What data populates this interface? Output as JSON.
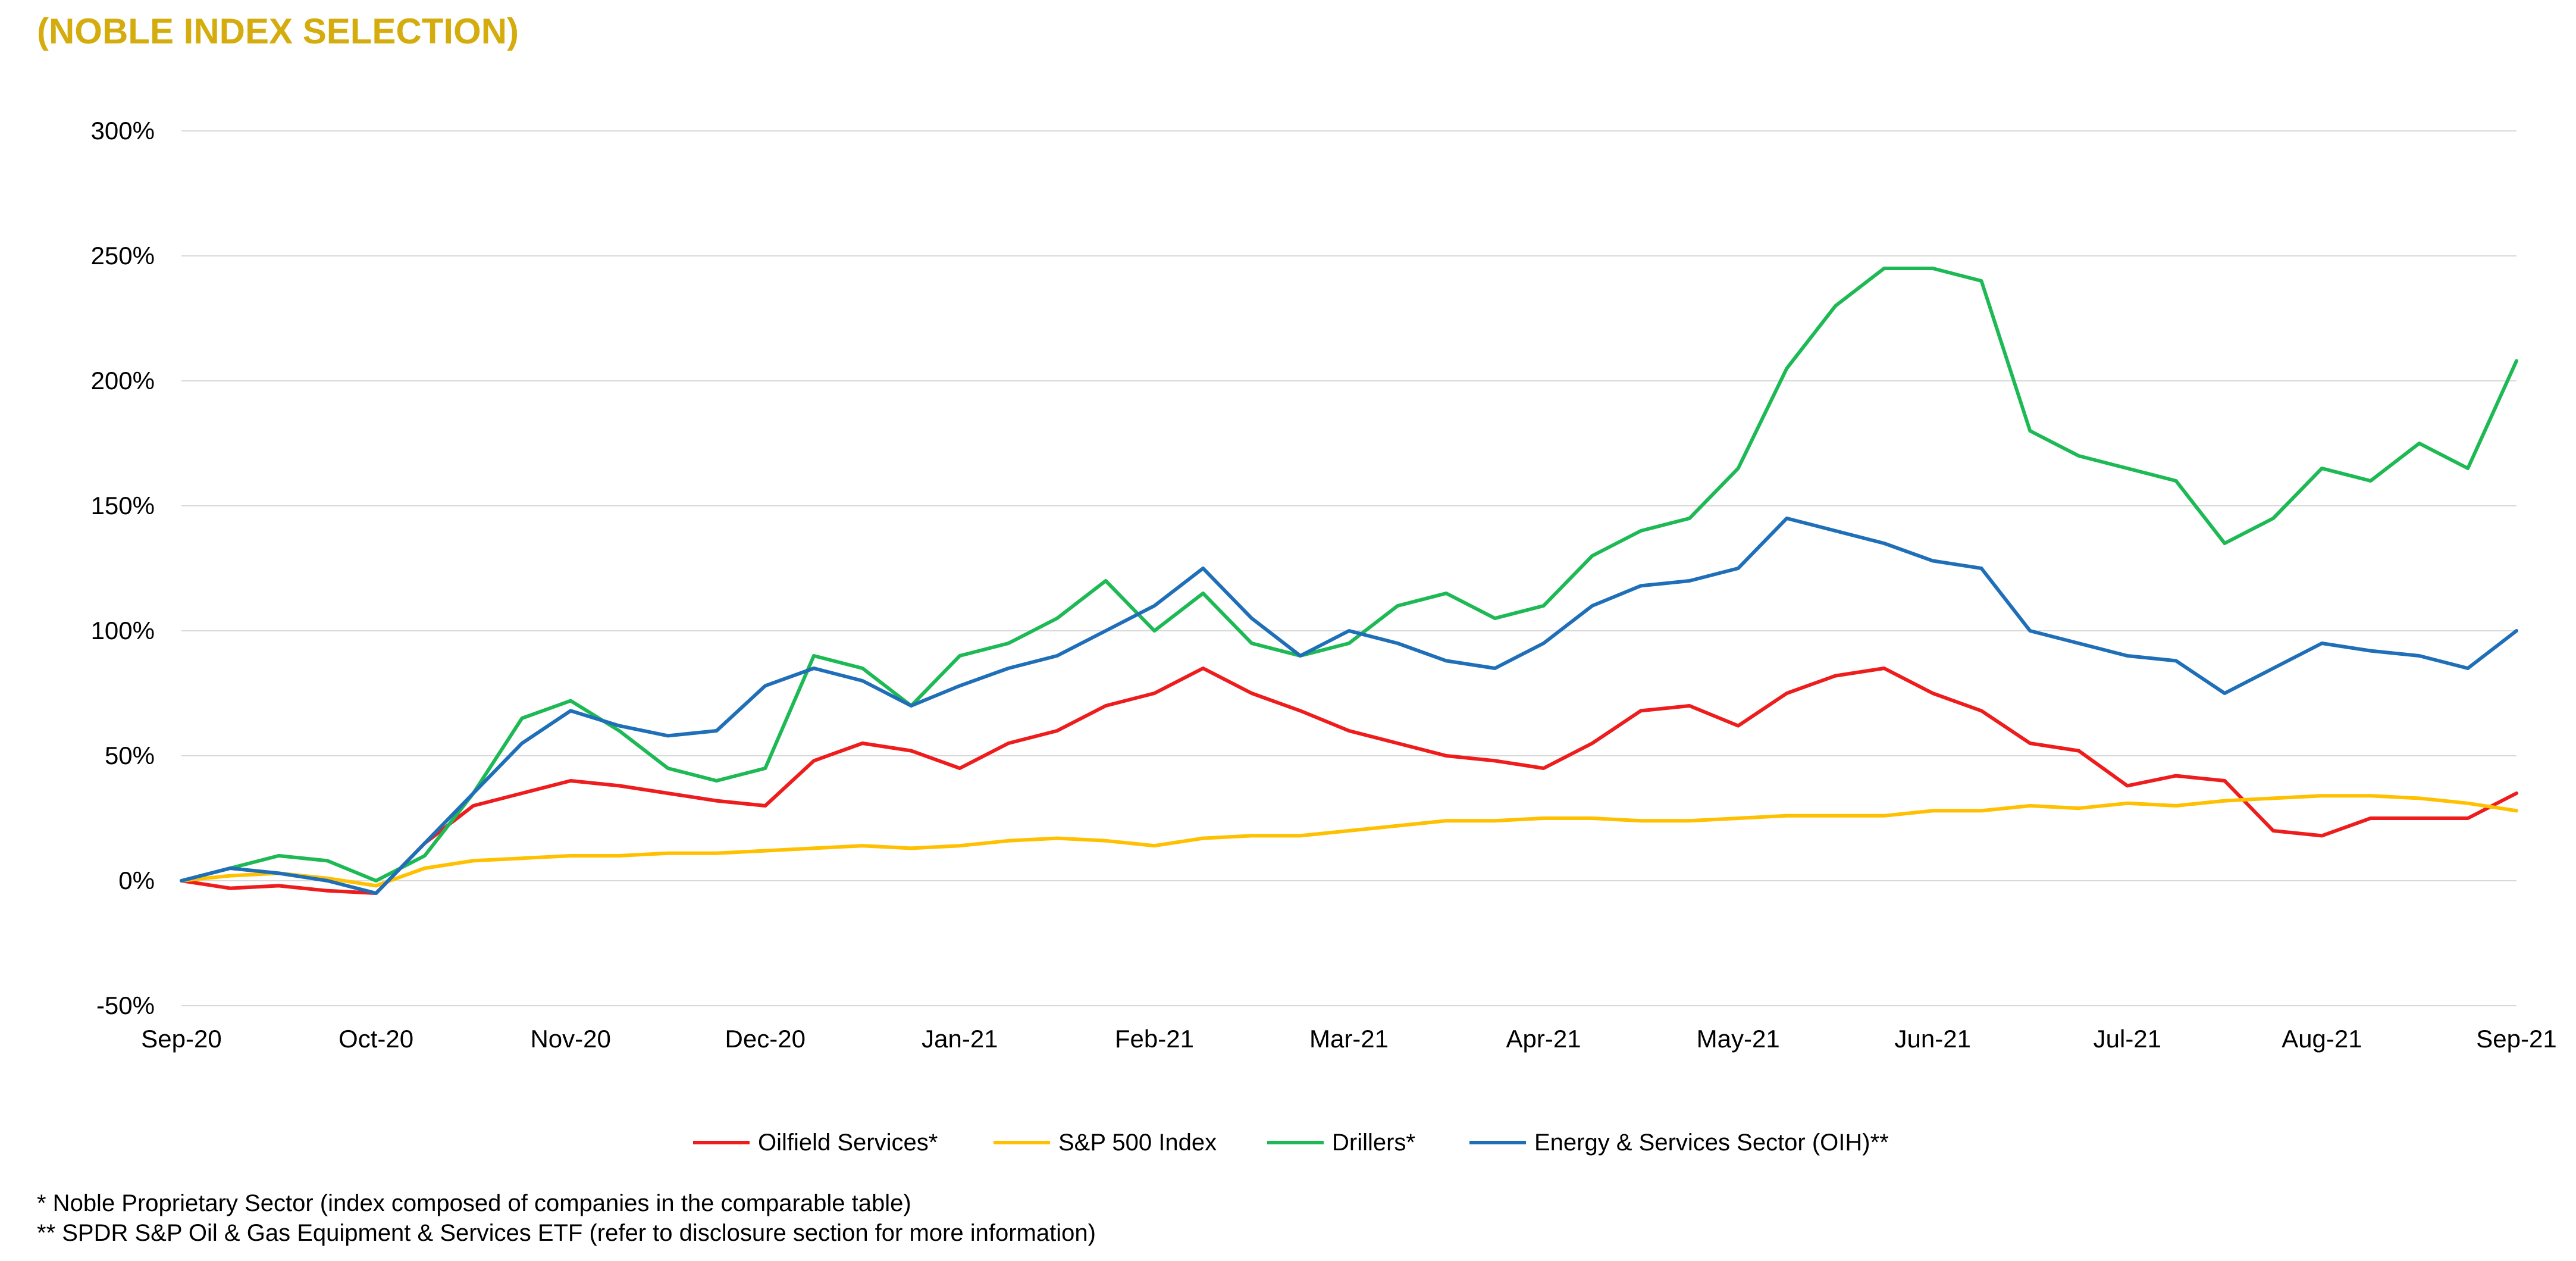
{
  "header": {
    "title": "(NOBLE INDEX SELECTION)"
  },
  "footnotes": {
    "note1": "* Noble Proprietary Sector (index composed of companies in the comparable table)",
    "note2": "** SPDR S&P Oil & Gas Equipment & Services ETF (refer to disclosure section for more information)"
  },
  "colors": {
    "title": "#d4ac0d",
    "grid": "#d9d9d9"
  },
  "chart_data": {
    "type": "line",
    "title": "",
    "xlabel": "",
    "ylabel": "",
    "grid": true,
    "legend_position": "bottom",
    "ylim": [
      -50,
      300
    ],
    "yticks": [
      -50,
      0,
      50,
      100,
      150,
      200,
      250,
      300
    ],
    "ytick_labels": [
      "-50%",
      "0%",
      "50%",
      "100%",
      "150%",
      "200%",
      "250%",
      "300%"
    ],
    "xlim": [
      0,
      12
    ],
    "xtick_labels": [
      "Sep-20",
      "Oct-20",
      "Nov-20",
      "Dec-20",
      "Jan-21",
      "Feb-21",
      "Mar-21",
      "Apr-21",
      "May-21",
      "Jun-21",
      "Jul-21",
      "Aug-21",
      "Sep-21"
    ],
    "x": [
      0,
      0.25,
      0.5,
      0.75,
      1,
      1.25,
      1.5,
      1.75,
      2,
      2.25,
      2.5,
      2.75,
      3,
      3.25,
      3.5,
      3.75,
      4,
      4.25,
      4.5,
      4.75,
      5,
      5.25,
      5.5,
      5.75,
      6,
      6.25,
      6.5,
      6.75,
      7,
      7.25,
      7.5,
      7.75,
      8,
      8.25,
      8.5,
      8.75,
      9,
      9.25,
      9.5,
      9.75,
      10,
      10.25,
      10.5,
      10.75,
      11,
      11.25,
      11.5,
      11.75,
      12
    ],
    "series": [
      {
        "name": "Oilfield Services*",
        "color": "#ee1c1c",
        "values": [
          0,
          -3,
          -2,
          -4,
          -5,
          15,
          30,
          35,
          40,
          38,
          35,
          32,
          30,
          48,
          55,
          52,
          45,
          55,
          60,
          70,
          75,
          85,
          75,
          68,
          60,
          55,
          50,
          48,
          45,
          55,
          68,
          70,
          62,
          75,
          82,
          85,
          75,
          68,
          55,
          52,
          38,
          42,
          40,
          20,
          18,
          25,
          25,
          25,
          35
        ]
      },
      {
        "name": "S&P 500 Index",
        "color": "#ffc000",
        "values": [
          0,
          2,
          3,
          1,
          -2,
          5,
          8,
          9,
          10,
          10,
          11,
          11,
          12,
          13,
          14,
          13,
          14,
          16,
          17,
          16,
          14,
          17,
          18,
          18,
          20,
          22,
          24,
          24,
          25,
          25,
          24,
          24,
          25,
          26,
          26,
          26,
          28,
          28,
          30,
          29,
          31,
          30,
          32,
          33,
          34,
          34,
          33,
          31,
          28
        ]
      },
      {
        "name": "Drillers*",
        "color": "#1db954",
        "values": [
          0,
          5,
          10,
          8,
          0,
          10,
          35,
          65,
          72,
          60,
          45,
          40,
          45,
          90,
          85,
          70,
          90,
          95,
          105,
          120,
          100,
          115,
          95,
          90,
          95,
          110,
          115,
          105,
          110,
          130,
          140,
          145,
          165,
          205,
          230,
          245,
          245,
          240,
          180,
          170,
          165,
          160,
          135,
          145,
          165,
          160,
          175,
          165,
          208
        ]
      },
      {
        "name": "Energy & Services Sector (OIH)**",
        "color": "#1f6fb8",
        "values": [
          0,
          5,
          3,
          0,
          -5,
          15,
          35,
          55,
          68,
          62,
          58,
          60,
          78,
          85,
          80,
          70,
          78,
          85,
          90,
          100,
          110,
          125,
          105,
          90,
          100,
          95,
          88,
          85,
          95,
          110,
          118,
          120,
          125,
          145,
          140,
          135,
          128,
          125,
          100,
          95,
          90,
          88,
          75,
          85,
          95,
          92,
          90,
          85,
          100
        ]
      }
    ]
  }
}
